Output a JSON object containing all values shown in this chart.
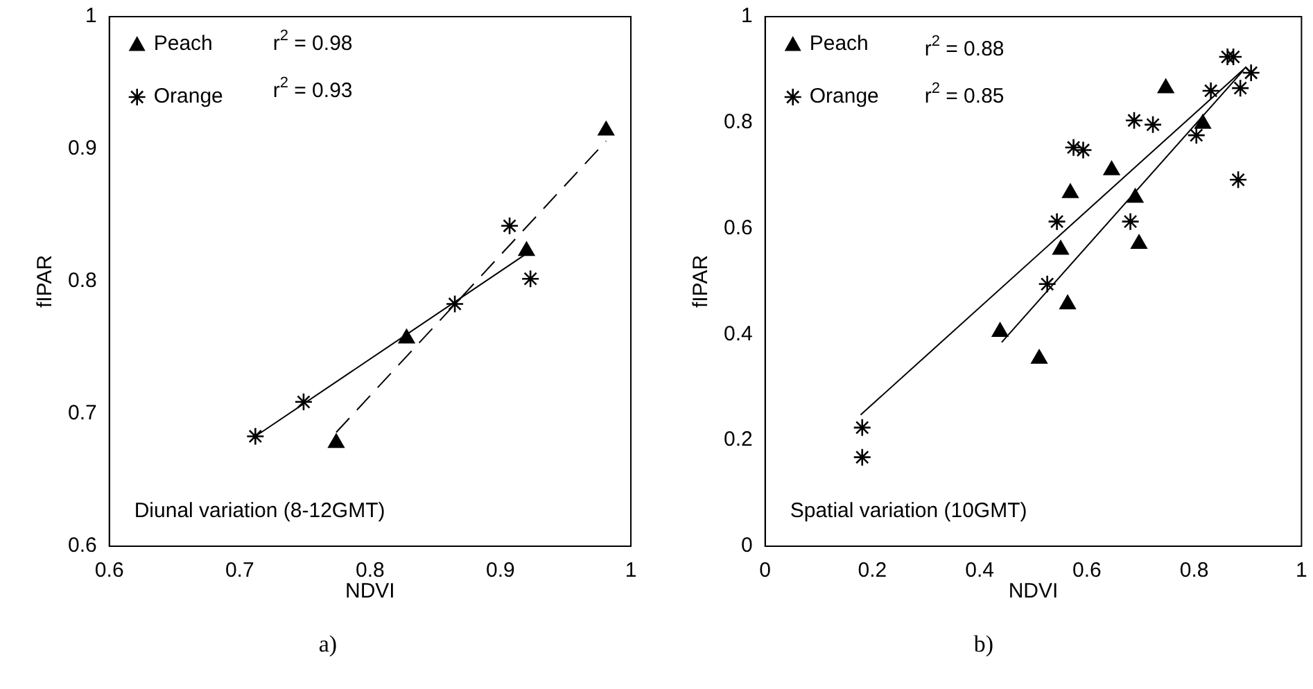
{
  "chart_data": [
    {
      "type": "scatter",
      "xlabel": "NDVI",
      "ylabel": "fIPAR",
      "xlim": [
        0.6,
        1
      ],
      "ylim": [
        0.6,
        1
      ],
      "xticks": [
        0.6,
        0.7,
        0.8,
        0.9,
        1
      ],
      "yticks": [
        0.6,
        0.7,
        0.8,
        0.9,
        1
      ],
      "legend": "top left",
      "grid": false,
      "annotations": [
        "r$^{2}$ = 0.98",
        "r$^{2}$ = 0.93",
        "Diunal variation (8-12GMT)",
        "a)"
      ],
      "series": [
        {
          "name": "Peach",
          "color": "#000000",
          "marker": "triangle",
          "x": [
            0.981,
            0.92,
            0.828,
            0.774
          ],
          "values": [
            0.914,
            0.823,
            0.757,
            0.678
          ]
        },
        {
          "name": "Orange",
          "color": "#000000",
          "marker": "cross",
          "x": [
            0.712,
            0.749,
            0.865,
            0.907,
            0.923
          ],
          "values": [
            0.683,
            0.709,
            0.783,
            0.842,
            0.802
          ]
        },
        {
          "type": "line",
          "color": "#000000",
          "marker": "none",
          "line_style": "dashed",
          "x": [
            0.774,
            0.981
          ],
          "values": [
            0.686,
            0.906
          ]
        },
        {
          "type": "line",
          "color": "#000000",
          "marker": "none",
          "line_style": "solid",
          "x": [
            0.712,
            0.92
          ],
          "values": [
            0.683,
            0.821
          ]
        }
      ]
    },
    {
      "type": "scatter",
      "xlabel": "NDVI",
      "ylabel": "fIPAR",
      "xlim": [
        0,
        1
      ],
      "ylim": [
        0,
        1
      ],
      "xticks": [
        0,
        0.2,
        0.4,
        0.6,
        0.8,
        1
      ],
      "yticks": [
        0,
        0.2,
        0.4,
        0.6,
        0.8,
        1
      ],
      "legend": "top left",
      "grid": false,
      "annotations": [
        "r$^{2}$ = 0.88",
        "r$^{2}$ = 0.85",
        "Spatial variation (10GMT)",
        "b)"
      ],
      "series": [
        {
          "name": "Peach",
          "color": "#000000",
          "marker": "triangle",
          "x": [
            0.438,
            0.511,
            0.551,
            0.564,
            0.569,
            0.646,
            0.69,
            0.697,
            0.747,
            0.816
          ],
          "values": [
            0.405,
            0.354,
            0.56,
            0.457,
            0.667,
            0.71,
            0.658,
            0.571,
            0.865,
            0.798
          ]
        },
        {
          "name": "Orange",
          "color": "#000000",
          "marker": "cross",
          "x": [
            0.181,
            0.181,
            0.526,
            0.544,
            0.575,
            0.593,
            0.681,
            0.688,
            0.723,
            0.804,
            0.831,
            0.862,
            0.873,
            0.886,
            0.906,
            0.882
          ],
          "values": [
            0.224,
            0.168,
            0.495,
            0.613,
            0.753,
            0.748,
            0.613,
            0.804,
            0.796,
            0.776,
            0.86,
            0.924,
            0.924,
            0.865,
            0.894,
            0.692
          ]
        },
        {
          "type": "line",
          "color": "#000000",
          "marker": "none",
          "line_style": "solid",
          "x": [
            0.441,
            0.892
          ],
          "values": [
            0.385,
            0.899
          ]
        },
        {
          "type": "line",
          "color": "#000000",
          "marker": "none",
          "line_style": "solid",
          "x": [
            0.178,
            0.897
          ],
          "values": [
            0.248,
            0.905
          ]
        }
      ]
    }
  ]
}
